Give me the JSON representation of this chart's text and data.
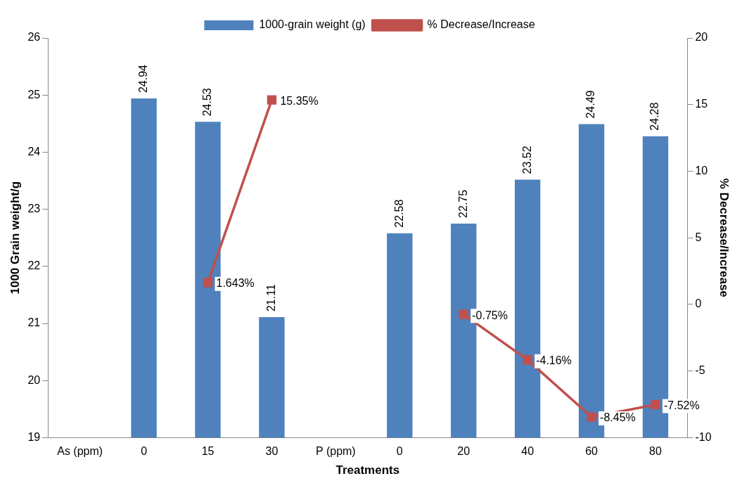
{
  "chart_data": {
    "type": "bar",
    "xlabel": "Treatments",
    "ylabel": "1000 Grain weight/g",
    "y2label": "% Decrease/Increase",
    "categories": [
      "As (ppm)",
      "0",
      "15",
      "30",
      "P (ppm)",
      "0",
      "20",
      "40",
      "60",
      "80"
    ],
    "series": [
      {
        "name": "1000-grain weight (g)",
        "color": "#4f81bd",
        "values": [
          null,
          24.94,
          24.53,
          21.11,
          null,
          22.58,
          22.75,
          23.52,
          24.49,
          24.28
        ],
        "value_labels": [
          null,
          "24.94",
          "24.53",
          "21.11",
          null,
          "22.58",
          "22.75",
          "23.52",
          "24.49",
          "24.28"
        ]
      },
      {
        "name": "% Decrease/Increase",
        "type": "line",
        "axis": "y2",
        "color": "#c0504d",
        "marker": "square",
        "values": [
          null,
          null,
          1.643,
          15.35,
          null,
          null,
          -0.75,
          -4.16,
          -8.45,
          -7.52
        ],
        "value_labels": [
          null,
          null,
          "1.643%",
          "15.35%",
          null,
          null,
          "-0.75%",
          "-4.16%",
          "-8.45%",
          "-7.52%"
        ]
      }
    ],
    "ylim": [
      19,
      26
    ],
    "yticks": [
      19,
      20,
      21,
      22,
      23,
      24,
      25,
      26
    ],
    "y2lim": [
      -10,
      20
    ],
    "y2ticks": [
      -10,
      -5,
      0,
      5,
      10,
      15,
      20
    ],
    "grid": false,
    "legend": "top"
  }
}
